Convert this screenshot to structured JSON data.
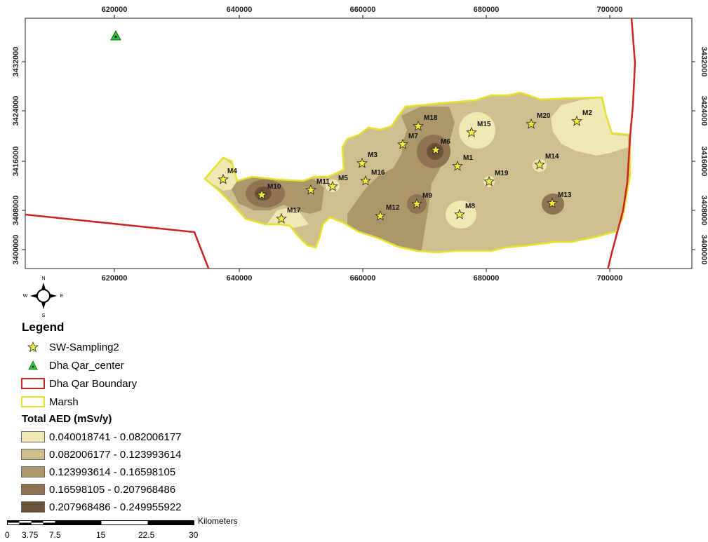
{
  "map": {
    "x_ticks_top": [
      "620000",
      "640000",
      "660000",
      "680000",
      "700000"
    ],
    "x_ticks_bottom": [
      "620000",
      "640000",
      "660000",
      "680000",
      "700000"
    ],
    "y_ticks": [
      "3432000",
      "3424000",
      "3416000",
      "3408000",
      "3400000"
    ],
    "north_arrow": {
      "n": "N",
      "s": "S",
      "e": "E",
      "w": "W"
    },
    "stations": [
      "M1",
      "M2",
      "M3",
      "M4",
      "M5",
      "M6",
      "M7",
      "M8",
      "M9",
      "M10",
      "M11",
      "M12",
      "M13",
      "M14",
      "M15",
      "M16",
      "M17",
      "M18",
      "M19",
      "M20"
    ],
    "colors": {
      "class1": "#efe8b3",
      "class2": "#cfbf8e",
      "class3": "#ab9769",
      "class4": "#8e7452",
      "class5": "#6b5238",
      "boundary": "#cc2222",
      "marsh": "#e6e22a",
      "center": "#2bc43a",
      "star": "#f3ef3a"
    }
  },
  "legend": {
    "title": "Legend",
    "items": [
      {
        "label": "SW-Sampling2",
        "icon": "star-icon"
      },
      {
        "label": "Dha Qar_center",
        "icon": "triangle-icon"
      },
      {
        "label": "Dha Qar Boundary",
        "icon": "red-outline-box"
      },
      {
        "label": "Marsh",
        "icon": "yellow-outline-box"
      }
    ],
    "aed_title": "Total AED (mSv/y)",
    "classes": [
      "0.040018741 - 0.082006177",
      "0.082006177 - 0.123993614",
      "0.123993614 - 0.16598105",
      "0.16598105 - 0.207968486",
      "0.207968486 - 0.249955922"
    ]
  },
  "scalebar": {
    "unit": "Kilometers",
    "ticks": [
      "0",
      "3.75",
      "7.5",
      "15",
      "22.5",
      "30"
    ]
  }
}
